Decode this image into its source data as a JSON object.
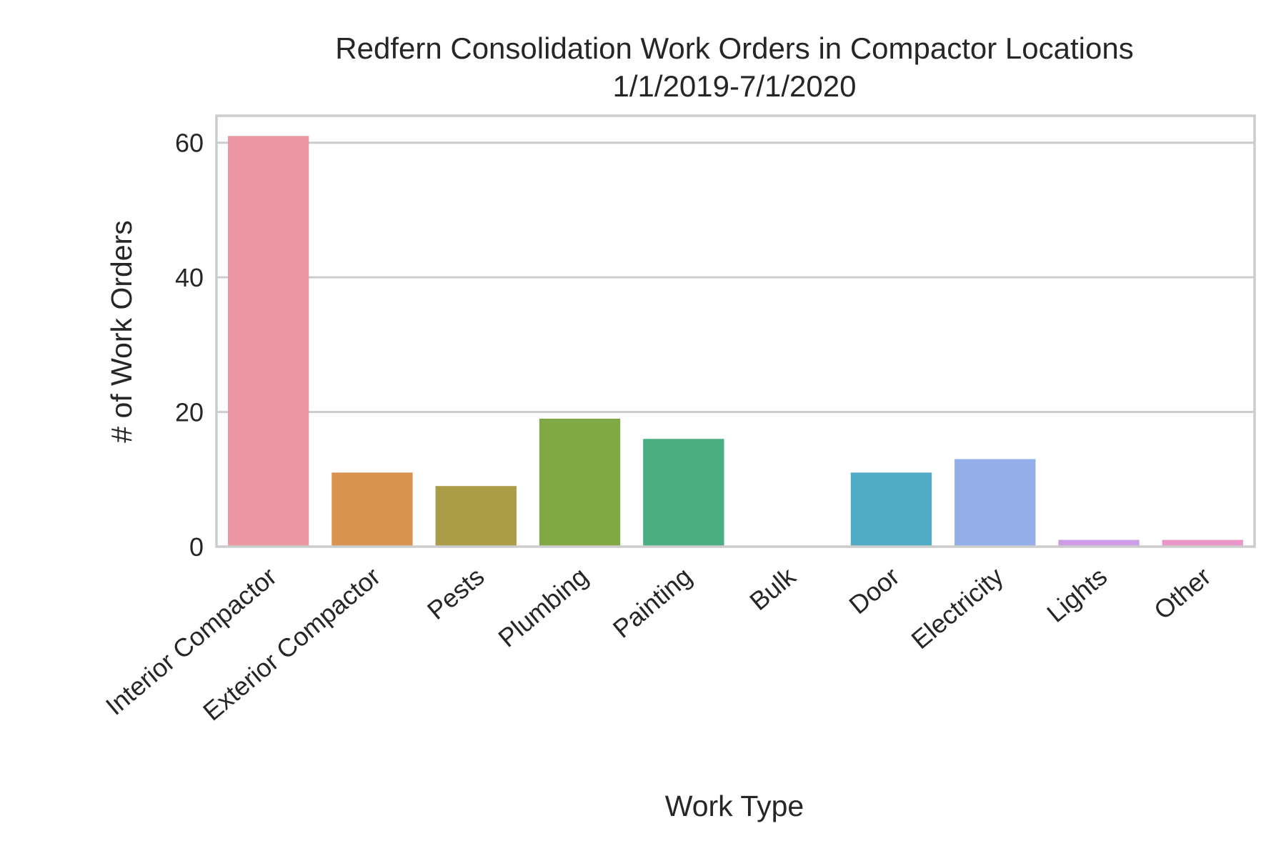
{
  "chart_data": {
    "type": "bar",
    "title": "Redfern Consolidation Work Orders in Compactor Locations",
    "subtitle": "1/1/2019-7/1/2020",
    "xlabel": "Work Type",
    "ylabel": "# of Work Orders",
    "categories": [
      "Interior Compactor",
      "Exterior Compactor",
      "Pests",
      "Plumbing",
      "Painting",
      "Bulk",
      "Door",
      "Electricity",
      "Lights",
      "Other"
    ],
    "values": [
      61,
      11,
      9,
      19,
      16,
      0,
      11,
      13,
      1,
      1
    ],
    "colors": [
      "#ea96a3",
      "#d8944e",
      "#ab9c47",
      "#80a946",
      "#4aae80",
      "#4cad99",
      "#52abc4",
      "#93aee8",
      "#cd9ee6",
      "#e996cb"
    ],
    "ylim": [
      0,
      64
    ],
    "yticks": [
      0,
      20,
      40,
      60
    ],
    "grid": "horizontal"
  }
}
